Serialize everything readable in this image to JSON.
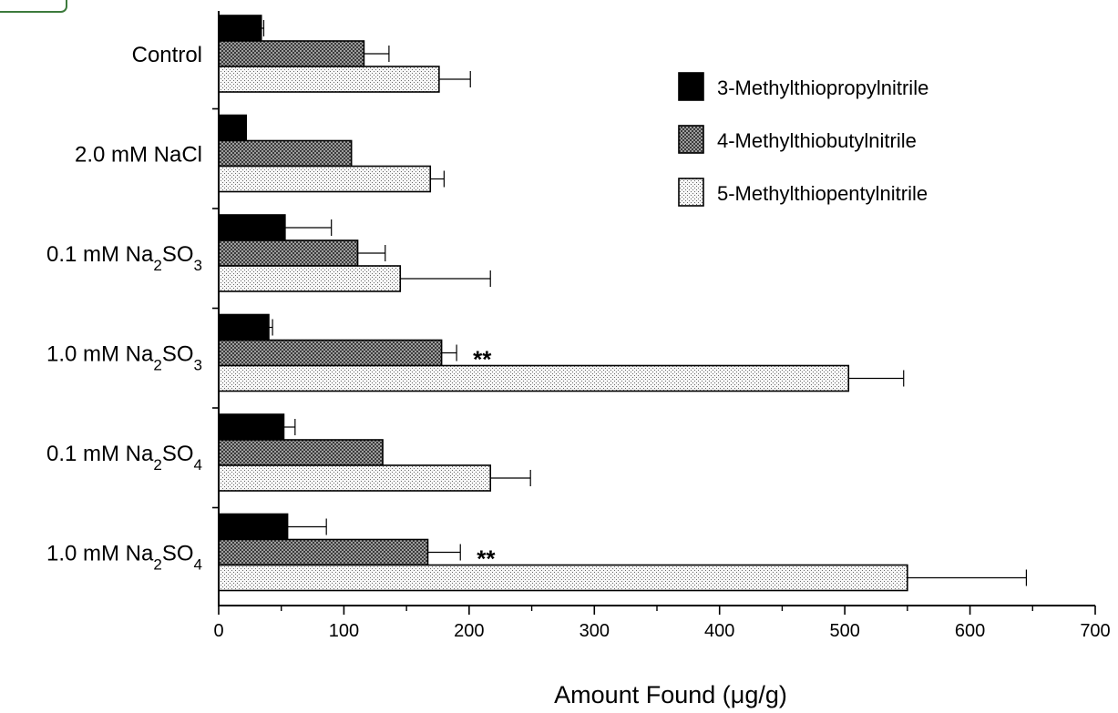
{
  "chart_data": {
    "type": "bar",
    "orientation": "horizontal",
    "categories": [
      {
        "base": "Control",
        "sub1": "",
        "mid": "",
        "sub2": ""
      },
      {
        "base": "2.0 mM NaCl",
        "sub1": "",
        "mid": "",
        "sub2": ""
      },
      {
        "base": "0.1 mM Na",
        "sub1": "2",
        "mid": "SO",
        "sub2": "3"
      },
      {
        "base": "1.0 mM Na",
        "sub1": "2",
        "mid": "SO",
        "sub2": "3"
      },
      {
        "base": "0.1 mM Na",
        "sub1": "2",
        "mid": "SO",
        "sub2": "4"
      },
      {
        "base": "1.0 mM Na",
        "sub1": "2",
        "mid": "SO",
        "sub2": "4"
      }
    ],
    "series": [
      {
        "name": "3-Methylthiopropylnitrile",
        "pattern": "solid",
        "values": [
          34,
          22,
          53,
          40,
          52,
          55
        ],
        "errors": [
          2,
          0,
          37,
          3,
          9,
          31
        ]
      },
      {
        "name": "4-Methylthiobutylnitrile",
        "pattern": "crosshatch",
        "values": [
          116,
          106,
          111,
          178,
          131,
          167
        ],
        "errors": [
          20,
          0,
          22,
          12,
          0,
          26
        ]
      },
      {
        "name": "5-Methylthiopentylnitrile",
        "pattern": "stipple",
        "values": [
          176,
          169,
          145,
          503,
          217,
          550
        ],
        "errors": [
          25,
          11,
          72,
          44,
          32,
          95
        ]
      }
    ],
    "annotations": [
      {
        "category_index": 3,
        "series_index": 1,
        "text": "**"
      },
      {
        "category_index": 5,
        "series_index": 1,
        "text": "**"
      }
    ],
    "x_ticks": [
      "0",
      "100",
      "200",
      "300",
      "400",
      "500",
      "600",
      "700"
    ],
    "xlim": [
      0,
      700
    ],
    "xlabel": "Amount Found (μg/g)",
    "ylabel": "",
    "title": "",
    "grid": false,
    "legend_position": "top-right",
    "colors": {
      "solid": "#000000",
      "crosshatch": "#555555",
      "stipple": "#ececec",
      "stroke": "#000000"
    }
  }
}
